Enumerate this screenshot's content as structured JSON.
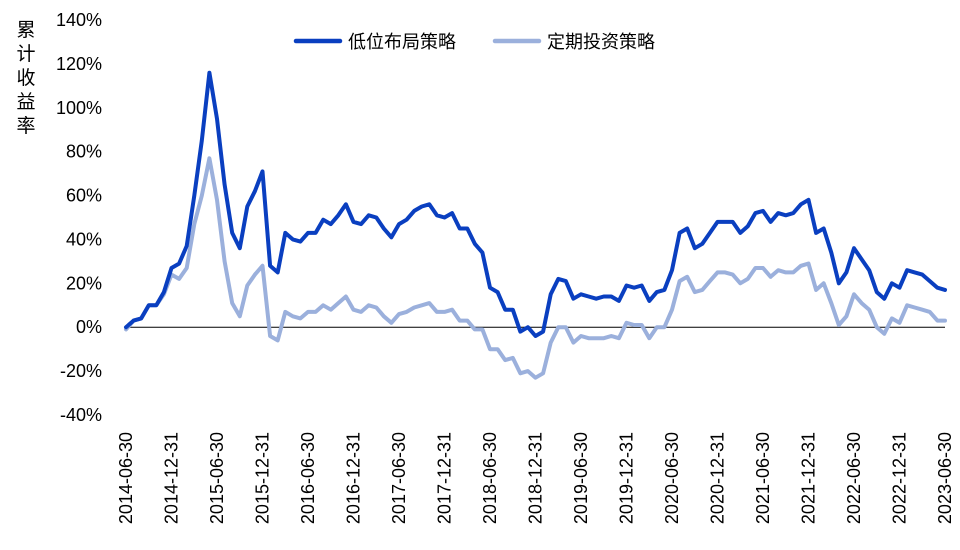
{
  "chart_data": {
    "type": "line",
    "ylabel": "累计收益率",
    "ylim": [
      -40,
      140
    ],
    "y_ticks": [
      "140%",
      "120%",
      "100%",
      "80%",
      "60%",
      "40%",
      "20%",
      "0%",
      "-20%",
      "-40%"
    ],
    "y_tick_values": [
      140,
      120,
      100,
      80,
      60,
      40,
      20,
      0,
      -20,
      -40
    ],
    "x_ticks": [
      "2014-06-30",
      "2014-12-31",
      "2015-06-30",
      "2015-12-31",
      "2016-06-30",
      "2016-12-31",
      "2017-06-30",
      "2017-12-31",
      "2018-06-30",
      "2018-12-31",
      "2019-06-30",
      "2019-12-31",
      "2020-06-30",
      "2020-12-31",
      "2021-06-30",
      "2021-12-31",
      "2022-06-30",
      "2022-12-31",
      "2023-06-30"
    ],
    "x_tick_months": [
      0,
      6,
      12,
      18,
      24,
      30,
      36,
      42,
      48,
      54,
      60,
      66,
      72,
      78,
      84,
      90,
      96,
      102,
      108
    ],
    "x_range_months": [
      0,
      108
    ],
    "grid": false,
    "legend_position": "top-center",
    "series": [
      {
        "name": "低位布局策略",
        "color": "#0a3fc0",
        "points": [
          [
            0,
            0
          ],
          [
            1,
            3
          ],
          [
            2,
            4
          ],
          [
            3,
            10
          ],
          [
            4,
            10
          ],
          [
            5,
            16
          ],
          [
            6,
            27
          ],
          [
            7,
            29
          ],
          [
            8,
            37
          ],
          [
            9,
            60
          ],
          [
            10,
            85
          ],
          [
            11,
            116
          ],
          [
            12,
            95
          ],
          [
            13,
            65
          ],
          [
            14,
            43
          ],
          [
            15,
            36
          ],
          [
            16,
            55
          ],
          [
            17,
            62
          ],
          [
            18,
            71
          ],
          [
            19,
            28
          ],
          [
            20,
            25
          ],
          [
            21,
            43
          ],
          [
            22,
            40
          ],
          [
            23,
            39
          ],
          [
            24,
            43
          ],
          [
            25,
            43
          ],
          [
            26,
            49
          ],
          [
            27,
            47
          ],
          [
            28,
            51
          ],
          [
            29,
            56
          ],
          [
            30,
            48
          ],
          [
            31,
            47
          ],
          [
            32,
            51
          ],
          [
            33,
            50
          ],
          [
            34,
            45
          ],
          [
            35,
            41
          ],
          [
            36,
            47
          ],
          [
            37,
            49
          ],
          [
            38,
            53
          ],
          [
            39,
            55
          ],
          [
            40,
            56
          ],
          [
            41,
            51
          ],
          [
            42,
            50
          ],
          [
            43,
            52
          ],
          [
            44,
            45
          ],
          [
            45,
            45
          ],
          [
            46,
            38
          ],
          [
            47,
            34
          ],
          [
            48,
            18
          ],
          [
            49,
            16
          ],
          [
            50,
            8
          ],
          [
            51,
            8
          ],
          [
            52,
            -2
          ],
          [
            53,
            0
          ],
          [
            54,
            -4
          ],
          [
            55,
            -2
          ],
          [
            56,
            15
          ],
          [
            57,
            22
          ],
          [
            58,
            21
          ],
          [
            59,
            13
          ],
          [
            60,
            15
          ],
          [
            61,
            14
          ],
          [
            62,
            13
          ],
          [
            63,
            14
          ],
          [
            64,
            14
          ],
          [
            65,
            12
          ],
          [
            66,
            19
          ],
          [
            67,
            18
          ],
          [
            68,
            19
          ],
          [
            69,
            12
          ],
          [
            70,
            16
          ],
          [
            71,
            17
          ],
          [
            72,
            26
          ],
          [
            73,
            43
          ],
          [
            74,
            45
          ],
          [
            75,
            36
          ],
          [
            76,
            38
          ],
          [
            77,
            43
          ],
          [
            78,
            48
          ],
          [
            79,
            48
          ],
          [
            80,
            48
          ],
          [
            81,
            43
          ],
          [
            82,
            46
          ],
          [
            83,
            52
          ],
          [
            84,
            53
          ],
          [
            85,
            48
          ],
          [
            86,
            52
          ],
          [
            87,
            51
          ],
          [
            88,
            52
          ],
          [
            89,
            56
          ],
          [
            90,
            58
          ],
          [
            91,
            43
          ],
          [
            92,
            45
          ],
          [
            93,
            34
          ],
          [
            94,
            20
          ],
          [
            95,
            25
          ],
          [
            96,
            36
          ],
          [
            97,
            31
          ],
          [
            98,
            26
          ],
          [
            99,
            16
          ],
          [
            100,
            13
          ],
          [
            101,
            20
          ],
          [
            102,
            18
          ],
          [
            103,
            26
          ],
          [
            104,
            25
          ],
          [
            105,
            24
          ],
          [
            106,
            21
          ],
          [
            107,
            18
          ],
          [
            108,
            17
          ]
        ]
      },
      {
        "name": "定期投资策略",
        "color": "#9bb0dc",
        "points": [
          [
            0,
            -1
          ],
          [
            1,
            3
          ],
          [
            2,
            4
          ],
          [
            3,
            10
          ],
          [
            4,
            10
          ],
          [
            5,
            15
          ],
          [
            6,
            24
          ],
          [
            7,
            22
          ],
          [
            8,
            27
          ],
          [
            9,
            47
          ],
          [
            10,
            60
          ],
          [
            11,
            77
          ],
          [
            12,
            58
          ],
          [
            13,
            30
          ],
          [
            14,
            11
          ],
          [
            15,
            5
          ],
          [
            16,
            19
          ],
          [
            17,
            24
          ],
          [
            18,
            28
          ],
          [
            19,
            -4
          ],
          [
            20,
            -6
          ],
          [
            21,
            7
          ],
          [
            22,
            5
          ],
          [
            23,
            4
          ],
          [
            24,
            7
          ],
          [
            25,
            7
          ],
          [
            26,
            10
          ],
          [
            27,
            8
          ],
          [
            28,
            11
          ],
          [
            29,
            14
          ],
          [
            30,
            8
          ],
          [
            31,
            7
          ],
          [
            32,
            10
          ],
          [
            33,
            9
          ],
          [
            34,
            5
          ],
          [
            35,
            2
          ],
          [
            36,
            6
          ],
          [
            37,
            7
          ],
          [
            38,
            9
          ],
          [
            39,
            10
          ],
          [
            40,
            11
          ],
          [
            41,
            7
          ],
          [
            42,
            7
          ],
          [
            43,
            8
          ],
          [
            44,
            3
          ],
          [
            45,
            3
          ],
          [
            46,
            -1
          ],
          [
            47,
            -1
          ],
          [
            48,
            -10
          ],
          [
            49,
            -10
          ],
          [
            50,
            -15
          ],
          [
            51,
            -14
          ],
          [
            52,
            -21
          ],
          [
            53,
            -20
          ],
          [
            54,
            -23
          ],
          [
            55,
            -21
          ],
          [
            56,
            -7
          ],
          [
            57,
            0
          ],
          [
            58,
            0
          ],
          [
            59,
            -7
          ],
          [
            60,
            -4
          ],
          [
            61,
            -5
          ],
          [
            62,
            -5
          ],
          [
            63,
            -5
          ],
          [
            64,
            -4
          ],
          [
            65,
            -5
          ],
          [
            66,
            2
          ],
          [
            67,
            1
          ],
          [
            68,
            1
          ],
          [
            69,
            -5
          ],
          [
            70,
            0
          ],
          [
            71,
            0
          ],
          [
            72,
            8
          ],
          [
            73,
            21
          ],
          [
            74,
            23
          ],
          [
            75,
            16
          ],
          [
            76,
            17
          ],
          [
            77,
            21
          ],
          [
            78,
            25
          ],
          [
            79,
            25
          ],
          [
            80,
            24
          ],
          [
            81,
            20
          ],
          [
            82,
            22
          ],
          [
            83,
            27
          ],
          [
            84,
            27
          ],
          [
            85,
            23
          ],
          [
            86,
            26
          ],
          [
            87,
            25
          ],
          [
            88,
            25
          ],
          [
            89,
            28
          ],
          [
            90,
            29
          ],
          [
            91,
            17
          ],
          [
            92,
            20
          ],
          [
            93,
            11
          ],
          [
            94,
            1
          ],
          [
            95,
            5
          ],
          [
            96,
            15
          ],
          [
            97,
            11
          ],
          [
            98,
            8
          ],
          [
            99,
            0
          ],
          [
            100,
            -3
          ],
          [
            101,
            4
          ],
          [
            102,
            2
          ],
          [
            103,
            10
          ],
          [
            104,
            9
          ],
          [
            105,
            8
          ],
          [
            106,
            7
          ],
          [
            107,
            3
          ],
          [
            108,
            3
          ]
        ]
      }
    ]
  }
}
